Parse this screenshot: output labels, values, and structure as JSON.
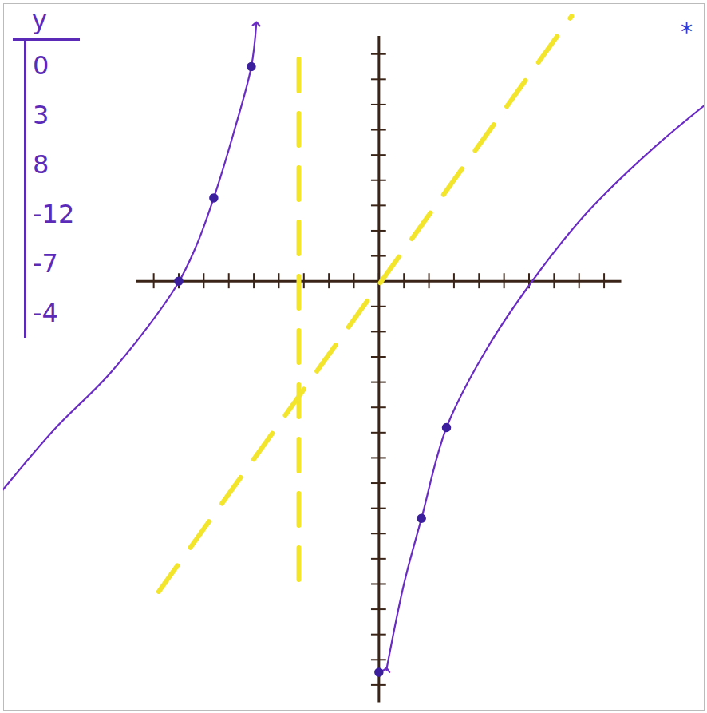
{
  "chart_data": {
    "type": "line",
    "xlim": [
      -15,
      13
    ],
    "ylim": [
      -17,
      11
    ],
    "xticks": [
      -9,
      -8,
      -7,
      -6,
      -5,
      -4,
      -3,
      -2,
      -1,
      0,
      1,
      2,
      3,
      4,
      5,
      6,
      7,
      8,
      9
    ],
    "yticks": [
      -16,
      -15,
      -14,
      -13,
      -12,
      -11,
      -10,
      -9,
      -8,
      -7,
      -6,
      -5,
      -4,
      -3,
      -2,
      -1,
      0,
      1,
      2,
      3,
      4,
      5,
      6,
      7,
      8,
      9
    ],
    "tick_labels": false,
    "grid": false,
    "series": [
      {
        "type": "line",
        "color": "#6a2cc4",
        "marker": "arrow",
        "line_style": "solid",
        "x": [
          -15.3,
          -13,
          -10.7,
          -8.1,
          -7.3,
          -6.6,
          -5.8,
          -5.1,
          -4.9
        ],
        "values": [
          -8.6,
          -5.9,
          -3.6,
          -0.2,
          1.4,
          3.3,
          5.9,
          8.5,
          10.2
        ]
      },
      {
        "type": "line",
        "color": "#6a2cc4",
        "marker": "arrow",
        "line_style": "solid",
        "x": [
          0.3,
          1,
          1.7,
          2.7,
          4.3,
          6.2,
          8.3,
          11,
          13.3
        ],
        "values": [
          -15.4,
          -12,
          -9.4,
          -5.8,
          -2.7,
          0.1,
          2.7,
          5.3,
          7.2
        ]
      },
      {
        "type": "line",
        "color": "#f2e52c",
        "line_style": "dashed",
        "x": [
          -3.2,
          -3.2
        ],
        "values": [
          8.8,
          -12.3
        ]
      },
      {
        "type": "line",
        "color": "#f2e52c",
        "line_style": "dashed",
        "x": [
          -8.8,
          7.7
        ],
        "values": [
          -12.3,
          10.5
        ]
      },
      {
        "type": "scatter",
        "color": "#3b1f9c",
        "marker": "circle",
        "x": [
          -8,
          -6.6,
          -5.1,
          0,
          1.7,
          2.7
        ],
        "values": [
          0,
          3.3,
          8.5,
          -15.5,
          -9.4,
          -5.8
        ]
      }
    ],
    "table": {
      "header": "y",
      "values": [
        0,
        3,
        8,
        -12,
        -7,
        -4
      ],
      "color": "#5b2bb8"
    },
    "annotations": [
      {
        "text": "*",
        "color": "#2b3bd6"
      }
    ]
  }
}
